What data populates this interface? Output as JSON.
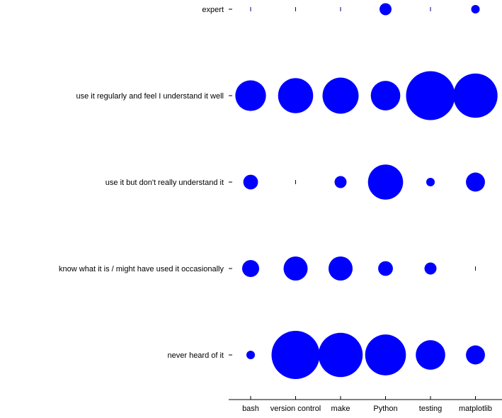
{
  "chart_data": {
    "type": "scatter",
    "title": "",
    "xlabel": "",
    "ylabel": "",
    "grid": false,
    "marker_color": "#0000ff",
    "categories": [
      "bash",
      "version control",
      "make",
      "Python",
      "testing",
      "matplotlib"
    ],
    "levels": [
      "never heard of it",
      "know what it is / might have used it occasionally",
      "use it but don't really understand it",
      "use it regularly and feel I understand it well",
      "expert"
    ],
    "values": [
      [
        1,
        32,
        27,
        23,
        12,
        5
      ],
      [
        4,
        8,
        8,
        3,
        2,
        0
      ],
      [
        3,
        0,
        2,
        17,
        1,
        5
      ],
      [
        13,
        17,
        18,
        12,
        33,
        27
      ],
      [
        0,
        0,
        0,
        2,
        0,
        1
      ]
    ]
  }
}
